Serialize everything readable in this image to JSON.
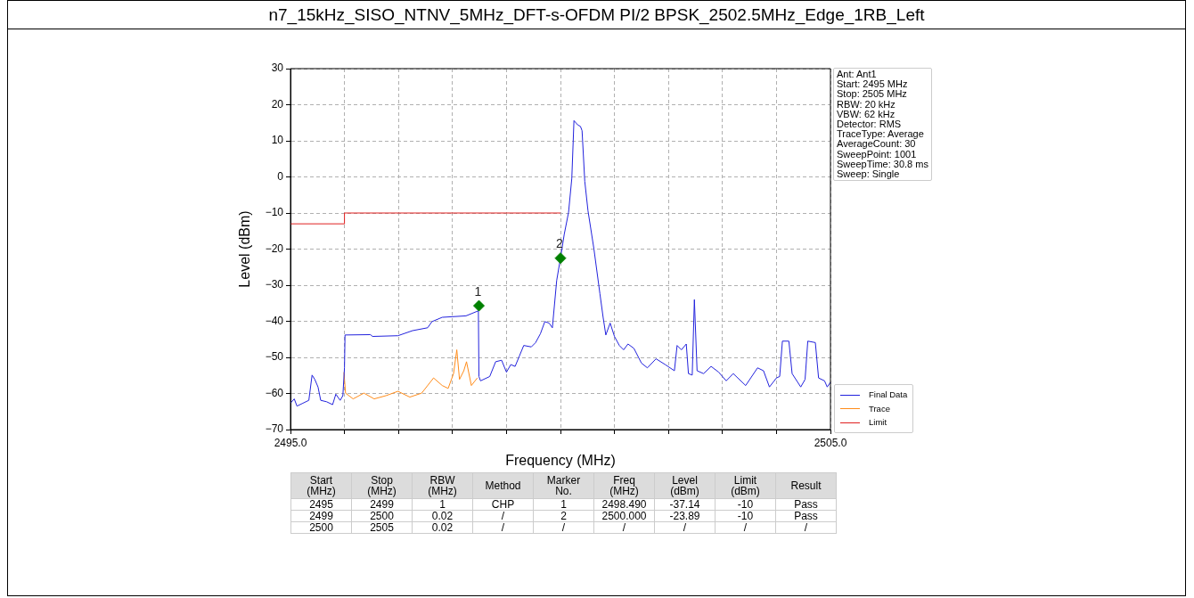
{
  "chart_data": [
    {
      "type": "line",
      "title": "n7_15kHz_SISO_NTNV_5MHz_DFT-s-OFDM PI/2 BPSK_2502.5MHz_Edge_1RB_Left",
      "xlabel": "Frequency (MHz)",
      "ylabel": "Level (dBm)",
      "xlim": [
        2495,
        2505
      ],
      "ylim": [
        -70,
        30
      ],
      "xticks": [
        {
          "value": 2495,
          "label": "2495.0"
        },
        {
          "value": 2496,
          "label": null
        },
        {
          "value": 2497,
          "label": null
        },
        {
          "value": 2498,
          "label": null
        },
        {
          "value": 2499,
          "label": null
        },
        {
          "value": 2500,
          "label": null
        },
        {
          "value": 2501,
          "label": null
        },
        {
          "value": 2502,
          "label": null
        },
        {
          "value": 2503,
          "label": null
        },
        {
          "value": 2504,
          "label": null
        },
        {
          "value": 2505,
          "label": "2505.0"
        }
      ],
      "yticks": [
        {
          "value": -70,
          "label": "−70"
        },
        {
          "value": -60,
          "label": "−60"
        },
        {
          "value": -50,
          "label": "−50"
        },
        {
          "value": -40,
          "label": "−40"
        },
        {
          "value": -30,
          "label": "−30"
        },
        {
          "value": -20,
          "label": "−20"
        },
        {
          "value": -10,
          "label": "−10"
        },
        0,
        10,
        20,
        30
      ],
      "grid": true,
      "legend": "bottom right",
      "marker": "none",
      "series": [
        {
          "name": "Final Data",
          "color": "#2222dd",
          "type": "line",
          "x": [
            2495.0,
            2495.07,
            2495.12,
            2495.23,
            2495.34,
            2495.4,
            2495.45,
            2495.51,
            2495.56,
            2495.67,
            2495.78,
            2495.84,
            2495.92,
            2495.97,
            2496.0,
            2496.01,
            2496.48,
            2496.52,
            2496.99,
            2497.26,
            2497.54,
            2497.62,
            2497.81,
            2498.25,
            2498.48,
            2498.49,
            2498.52,
            2498.69,
            2498.8,
            2498.91,
            2499.0,
            2499.08,
            2499.16,
            2499.24,
            2499.32,
            2499.46,
            2499.54,
            2499.63,
            2499.71,
            2499.79,
            2499.85,
            2499.93,
            2500.0,
            2500.07,
            2500.15,
            2500.21,
            2500.25,
            2500.32,
            2500.37,
            2500.4,
            2500.45,
            2500.51,
            2500.62,
            2500.73,
            2500.79,
            2500.84,
            2500.92,
            2501.0,
            2501.09,
            2501.17,
            2501.25,
            2501.36,
            2501.5,
            2501.61,
            2501.77,
            2501.94,
            2502.11,
            2502.16,
            2502.24,
            2502.33,
            2502.37,
            2502.44,
            2502.48,
            2502.53,
            2502.65,
            2502.79,
            2502.93,
            2503.07,
            2503.2,
            2503.43,
            2503.65,
            2503.76,
            2503.87,
            2504.0,
            2504.06,
            2504.11,
            2504.23,
            2504.29,
            2504.45,
            2504.53,
            2504.58,
            2504.72,
            2504.78,
            2504.89,
            2504.94,
            2505.0
          ],
          "values": [
            -62.7,
            -61.5,
            -63.5,
            -62.7,
            -61.9,
            -54.9,
            -56.1,
            -58.2,
            -61.9,
            -62.3,
            -63.1,
            -60.2,
            -61.9,
            -60.6,
            -52.9,
            -43.8,
            -43.7,
            -44.2,
            -44.0,
            -42.6,
            -41.8,
            -40.1,
            -38.9,
            -38.5,
            -37.1,
            -55.3,
            -56.5,
            -55.3,
            -51.2,
            -50.8,
            -54.1,
            -52.0,
            -52.5,
            -49.6,
            -46.7,
            -47.1,
            -45.9,
            -43.4,
            -40.1,
            -40.5,
            -41.8,
            -28.7,
            -22.5,
            -15.9,
            -9.8,
            -0.4,
            15.6,
            14.4,
            14.0,
            12.8,
            -1.2,
            -9.4,
            -20.0,
            -32.3,
            -38.9,
            -43.8,
            -40.5,
            -44.2,
            -46.7,
            -47.9,
            -46.3,
            -47.5,
            -51.6,
            -52.9,
            -50.4,
            -52.0,
            -53.7,
            -46.7,
            -47.9,
            -46.3,
            -54.5,
            -54.9,
            -34.0,
            -53.7,
            -54.5,
            -52.5,
            -54.1,
            -56.5,
            -54.5,
            -57.8,
            -52.9,
            -53.7,
            -58.2,
            -55.7,
            -55.3,
            -45.5,
            -45.5,
            -54.5,
            -58.2,
            -56.1,
            -45.5,
            -45.9,
            -55.7,
            -56.5,
            -58.2,
            -56.9
          ]
        },
        {
          "name": "Trace",
          "color": "#ff8c1a",
          "type": "line",
          "x": [
            2495.99,
            2496.02,
            2496.16,
            2496.36,
            2496.55,
            2496.77,
            2496.99,
            2497.21,
            2497.43,
            2497.65,
            2497.81,
            2497.92,
            2498.02,
            2498.08,
            2498.13,
            2498.21,
            2498.26,
            2498.35,
            2498.46
          ],
          "values": [
            -54.1,
            -59.9,
            -61.5,
            -59.9,
            -61.5,
            -60.6,
            -59.4,
            -61.0,
            -59.9,
            -55.7,
            -57.8,
            -58.6,
            -54.5,
            -47.9,
            -56.1,
            -53.7,
            -51.2,
            -57.8,
            -55.7
          ]
        },
        {
          "name": "Limit",
          "color": "#e02020",
          "type": "line",
          "x": [
            2495,
            2496,
            2496,
            2500
          ],
          "values": [
            -13,
            -13,
            -10,
            -10
          ]
        },
        {
          "color": "#008000",
          "type": "scatter",
          "marker": "diamond",
          "x": [
            2498.49,
            2500.0
          ],
          "values": [
            -35.7,
            -22.5
          ]
        }
      ],
      "annotations": [
        {
          "text": "1",
          "x": 2498.49,
          "y": -35.7
        },
        {
          "text": "2",
          "x": 2500.0,
          "y": -22.5
        },
        "Ant: Ant1",
        "Start: 2495 MHz",
        "Stop: 2505 MHz",
        "RBW: 20 kHz",
        "VBW: 62 kHz",
        "Detector: RMS",
        "TraceType: Average",
        "AverageCount: 30",
        "SweepPoint: 1001",
        "SweepTime: 30.8 ms",
        "Sweep: Single"
      ]
    },
    {
      "type": "other",
      "categories": [
        "Start (MHz)",
        "Stop (MHz)",
        "RBW (MHz)",
        "Method",
        "Marker No.",
        "Freq (MHz)",
        "Level (dBm)",
        "Limit (dBm)",
        "Result"
      ],
      "annotations": [
        "2495",
        "2499",
        "1",
        "CHP",
        "1",
        "2498.490",
        "-37.14",
        "-10",
        "Pass",
        "2499",
        "2500",
        "0.02",
        "/",
        "2",
        "2500.000",
        "-23.89",
        "-10",
        "Pass",
        "2500",
        "2505",
        "0.02",
        "/",
        "/",
        "/",
        "/",
        "/",
        "/"
      ]
    }
  ]
}
